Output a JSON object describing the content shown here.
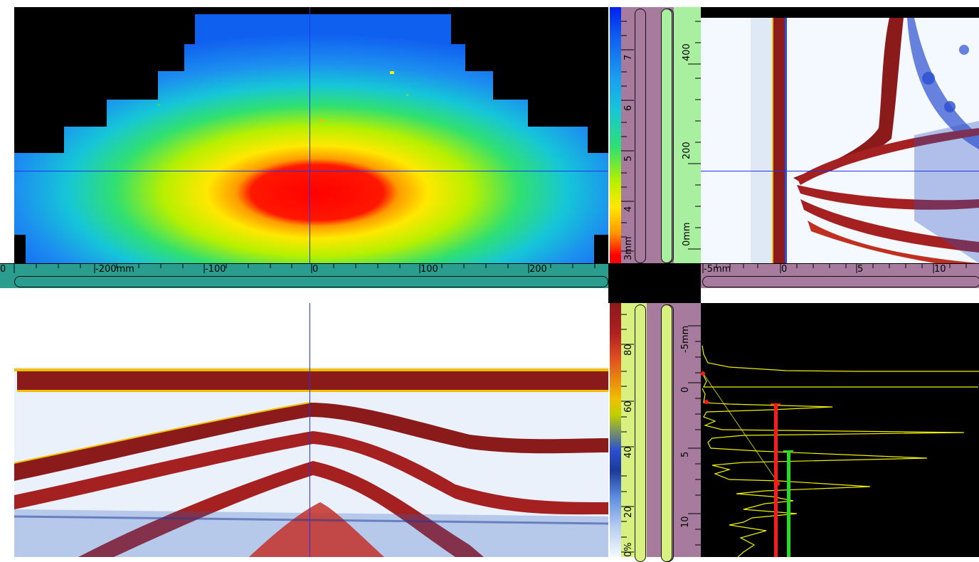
{
  "cscan": {
    "xaxis": {
      "ticks": [
        "0",
        "-200mm",
        "-100",
        "0",
        "100",
        "200"
      ]
    }
  },
  "thickness_scale": {
    "ticks": [
      "3mm",
      "4",
      "5",
      "6",
      "7"
    ]
  },
  "scan_axis": {
    "ticks": [
      "0mm",
      "200",
      "400"
    ]
  },
  "bscan_side": {
    "xaxis": {
      "ticks": [
        "-5mm",
        "0",
        "5",
        "10"
      ]
    }
  },
  "amplitude_scale": {
    "ticks": [
      "0%",
      "20",
      "40",
      "60",
      "80"
    ]
  },
  "depth_axis": {
    "ticks": [
      "-5mm",
      "0",
      "5",
      "10"
    ]
  },
  "colors": {
    "crosshair": "#2233ee",
    "axis_teal": "#2a9d8f",
    "axis_purple": "#a77b9e",
    "axis_green": "#a8f0a0",
    "axis_yellowgreen": "#d8f080",
    "ascan_trace": "#f0f000",
    "gate_red": "#ff1a1a",
    "gate_green": "#22dd22"
  }
}
